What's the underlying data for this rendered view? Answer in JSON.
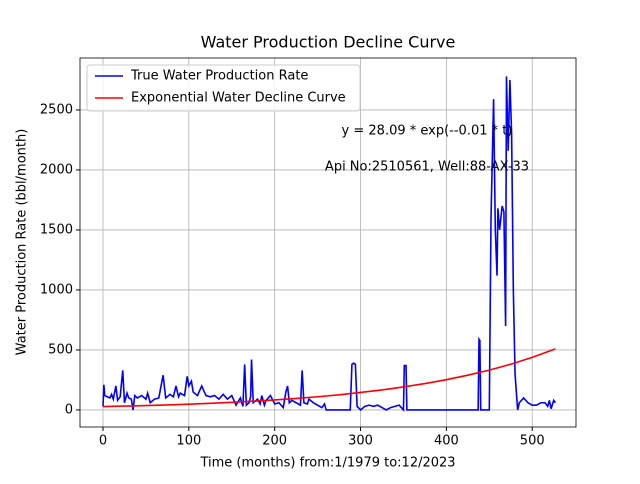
{
  "chart_data": {
    "type": "line",
    "title": "Water Production Decline Curve",
    "xlabel": "Time (months) from:1/1979 to:12/2023",
    "ylabel": "Water Production Rate (bbl/month)",
    "annotations": [
      "y = 28.09 * exp(--0.01 * t)",
      "Api No:2510561, Well:88-AX-33"
    ],
    "xlim": [
      -26.8,
      551
    ],
    "ylim": [
      -142,
      2933
    ],
    "xticks": [
      0,
      100,
      200,
      300,
      400,
      500
    ],
    "yticks": [
      0,
      500,
      1000,
      1500,
      2000,
      2500
    ],
    "grid": true,
    "legend": "upper left",
    "series": [
      {
        "name": "True Water Production Rate",
        "color": "#0000ff",
        "x": [
          0,
          1,
          2,
          5,
          8,
          10,
          12,
          15,
          17,
          20,
          23,
          25,
          28,
          30,
          33,
          35,
          37,
          40,
          45,
          50,
          52,
          55,
          60,
          65,
          70,
          73,
          78,
          82,
          85,
          88,
          90,
          95,
          98,
          100,
          103,
          105,
          110,
          115,
          118,
          120,
          125,
          130,
          135,
          140,
          145,
          150,
          155,
          160,
          163,
          165,
          167,
          170,
          172,
          173,
          175,
          180,
          183,
          185,
          188,
          190,
          195,
          200,
          205,
          210,
          213,
          215,
          217,
          220,
          225,
          230,
          232,
          234,
          238,
          240,
          245,
          250,
          255,
          258,
          260,
          270,
          280,
          288,
          290,
          292,
          294,
          296,
          300,
          305,
          310,
          315,
          320,
          330,
          335,
          340,
          345,
          350,
          351,
          353,
          354,
          360,
          400,
          437,
          438,
          439,
          440,
          450,
          452,
          455,
          457,
          459,
          460,
          462,
          465,
          467,
          469,
          470,
          472,
          474,
          476,
          478,
          480,
          483,
          485,
          490,
          495,
          500,
          505,
          510,
          515,
          518,
          520,
          522,
          525,
          527
        ],
        "values": [
          30,
          210,
          120,
          110,
          100,
          130,
          90,
          200,
          80,
          110,
          330,
          60,
          140,
          100,
          90,
          0,
          120,
          100,
          120,
          90,
          140,
          60,
          90,
          100,
          290,
          100,
          130,
          110,
          200,
          110,
          140,
          120,
          280,
          200,
          240,
          150,
          120,
          200,
          150,
          120,
          110,
          120,
          90,
          130,
          90,
          120,
          40,
          100,
          30,
          380,
          40,
          60,
          110,
          420,
          60,
          90,
          50,
          120,
          40,
          80,
          120,
          50,
          60,
          20,
          150,
          200,
          60,
          80,
          60,
          40,
          330,
          60,
          50,
          90,
          60,
          40,
          20,
          50,
          0,
          0,
          0,
          0,
          380,
          390,
          380,
          30,
          0,
          30,
          40,
          30,
          40,
          0,
          20,
          30,
          40,
          0,
          370,
          370,
          0,
          0,
          0,
          0,
          590,
          580,
          0,
          0,
          1600,
          2590,
          1500,
          1120,
          1680,
          1500,
          1700,
          1650,
          700,
          2780,
          2160,
          2750,
          2300,
          1000,
          300,
          0,
          60,
          100,
          60,
          40,
          40,
          60,
          60,
          30,
          80,
          10,
          80,
          60
        ]
      },
      {
        "name": "Exponential Water Decline Curve",
        "color": "#ff0000",
        "x": [
          0,
          25,
          50,
          75,
          100,
          125,
          150,
          175,
          200,
          225,
          250,
          275,
          300,
          325,
          350,
          375,
          400,
          425,
          450,
          475,
          500,
          527
        ],
        "values": [
          28.1,
          32.1,
          36.8,
          42.2,
          48.5,
          55.5,
          63.7,
          73,
          83.7,
          96,
          110,
          126,
          146,
          167,
          192,
          220,
          252,
          290,
          332,
          381,
          438,
          509
        ]
      }
    ]
  }
}
